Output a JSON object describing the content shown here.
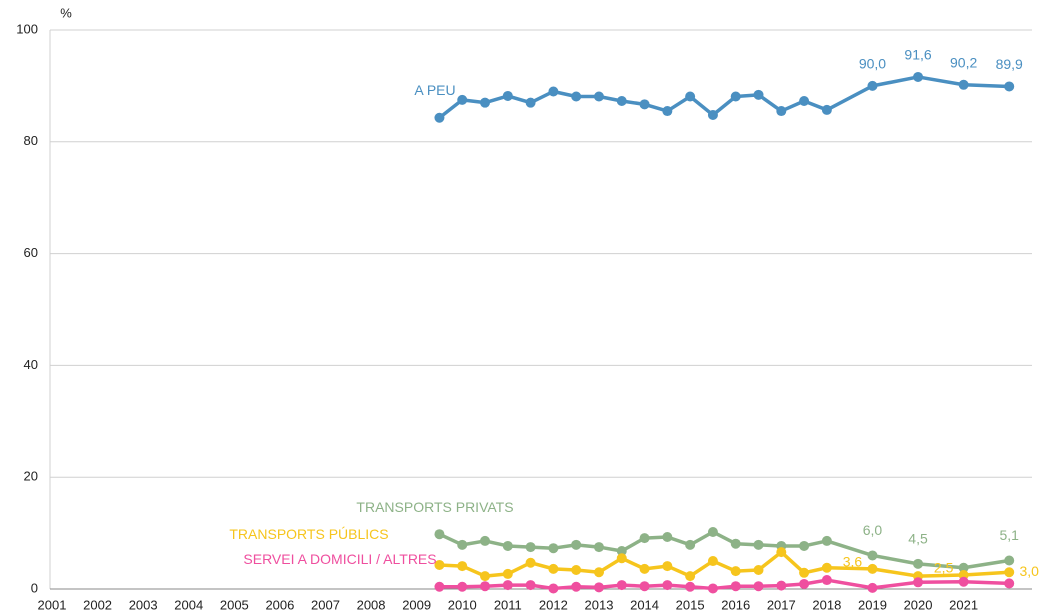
{
  "chart_data": {
    "type": "line",
    "y_label": "%",
    "xlim": [
      2001,
      2022.5
    ],
    "ylim": [
      0,
      100
    ],
    "yticks": [
      0,
      20,
      40,
      60,
      80,
      100
    ],
    "xticks": [
      2001,
      2002,
      2003,
      2004,
      2005,
      2006,
      2007,
      2008,
      2009,
      2010,
      2011,
      2012,
      2013,
      2014,
      2015,
      2016,
      2017,
      2018,
      2019,
      2020,
      2021
    ],
    "grid": true,
    "x": [
      2009.5,
      2010,
      2010.5,
      2011,
      2011.5,
      2012,
      2012.5,
      2013,
      2013.5,
      2014,
      2014.5,
      2015,
      2015.5,
      2016,
      2016.5,
      2017,
      2017.5,
      2018,
      2019,
      2020,
      2021,
      2022
    ],
    "series": [
      {
        "name": "A PEU",
        "color": "#4a8fc1",
        "values": [
          84.3,
          87.5,
          87.0,
          88.2,
          87.0,
          89.0,
          88.1,
          88.1,
          87.3,
          86.7,
          85.5,
          88.1,
          84.8,
          88.1,
          88.4,
          85.5,
          87.3,
          85.7,
          90.0,
          91.6,
          90.2,
          89.9
        ],
        "value_labels": [
          null,
          null,
          null,
          null,
          null,
          null,
          null,
          null,
          null,
          null,
          null,
          null,
          null,
          null,
          null,
          null,
          null,
          null,
          "90,0",
          "91,6",
          "90,2",
          "89,9"
        ]
      },
      {
        "name": "TRANSPORTS PRIVATS",
        "color": "#8db287",
        "values": [
          9.8,
          7.9,
          8.6,
          7.7,
          7.5,
          7.3,
          7.9,
          7.5,
          6.8,
          9.1,
          9.3,
          7.9,
          10.2,
          8.1,
          7.9,
          7.7,
          7.7,
          8.6,
          6.0,
          4.5,
          3.8,
          5.1
        ],
        "value_labels": [
          null,
          null,
          null,
          null,
          null,
          null,
          null,
          null,
          null,
          null,
          null,
          null,
          null,
          null,
          null,
          null,
          null,
          null,
          "6,0",
          "4,5",
          null,
          "5,1"
        ]
      },
      {
        "name": "TRANSPORTS PÚBLICS",
        "color": "#f6c51d",
        "values": [
          4.3,
          4.1,
          2.3,
          2.7,
          4.7,
          3.6,
          3.4,
          3.0,
          5.5,
          3.6,
          4.1,
          2.3,
          5.0,
          3.2,
          3.4,
          6.6,
          2.9,
          3.8,
          3.6,
          2.3,
          2.5,
          3.0
        ],
        "value_labels": [
          null,
          null,
          null,
          null,
          null,
          null,
          null,
          null,
          null,
          null,
          null,
          null,
          null,
          null,
          null,
          null,
          null,
          null,
          "3,6",
          null,
          "2,5",
          "3,0"
        ]
      },
      {
        "name": "SERVEI A DOMICILI / ALTRES",
        "color": "#ef4f9f",
        "values": [
          0.4,
          0.4,
          0.5,
          0.7,
          0.7,
          0.1,
          0.4,
          0.3,
          0.7,
          0.5,
          0.7,
          0.4,
          0.1,
          0.5,
          0.5,
          0.6,
          0.9,
          1.6,
          0.2,
          1.2,
          1.3,
          1.0
        ]
      }
    ]
  }
}
